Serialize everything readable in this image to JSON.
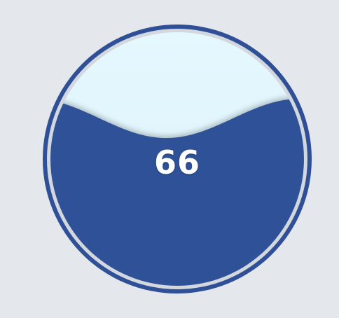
{
  "gauge": {
    "value_label": "66",
    "level_percent": 66,
    "colors": {
      "background": "#e4e8ed",
      "outer_ring": "#2f4f96",
      "inner_ring": "#d3d7de",
      "liquid": "#2f5198",
      "empty": "#e3f6fd"
    }
  }
}
